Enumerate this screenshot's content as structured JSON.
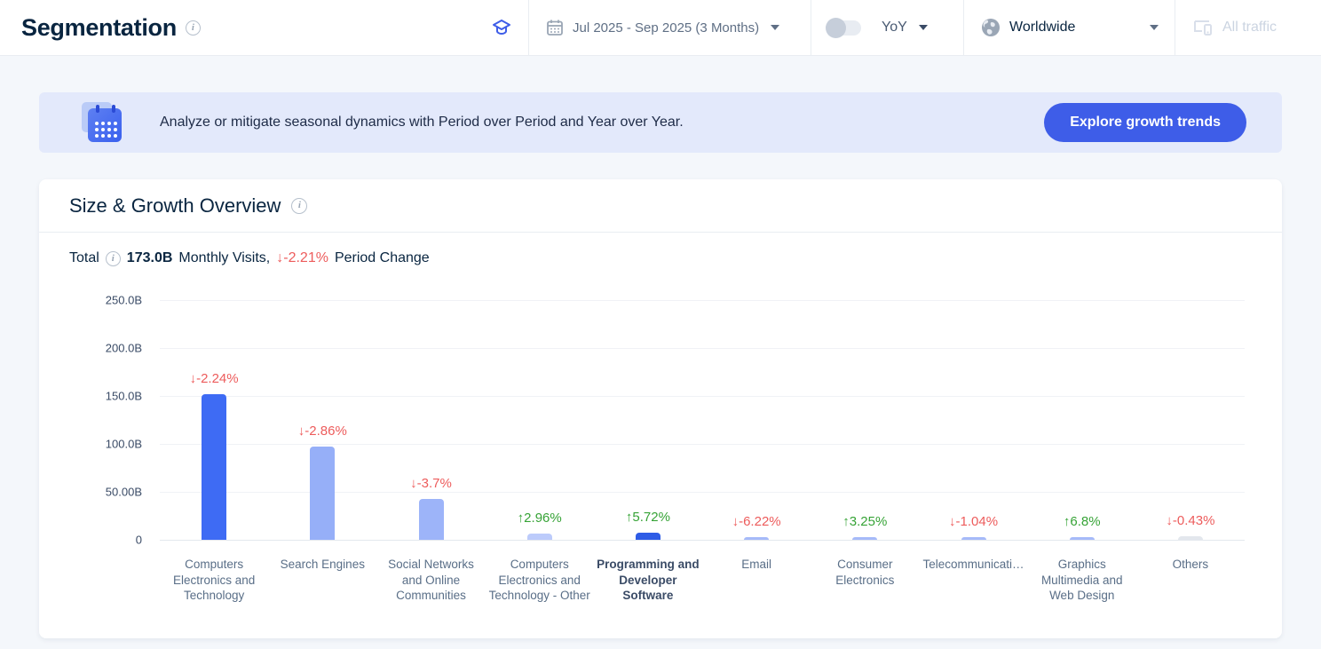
{
  "header": {
    "title": "Segmentation",
    "date_range": "Jul 2025 - Sep 2025 (3 Months)",
    "comparison_label": "YoY",
    "geo_label": "Worldwide",
    "traffic_label": "All traffic"
  },
  "banner": {
    "text": "Analyze or mitigate seasonal dynamics with Period over Period and Year over Year.",
    "button_label": "Explore growth trends"
  },
  "overview": {
    "title": "Size & Growth Overview",
    "total_label": "Total",
    "total_value": "173.0B",
    "total_suffix": "Monthly Visits,",
    "total_change": "↓-2.21%",
    "total_change_suffix": "Period Change"
  },
  "chart_data": {
    "type": "bar",
    "title": "Size & Growth Overview",
    "ylabel": "Monthly Visits",
    "unit": "B",
    "ylim": [
      0,
      250
    ],
    "grid": true,
    "y_ticks": [
      "250.0B",
      "200.0B",
      "150.0B",
      "100.0B",
      "50.00B",
      "0"
    ],
    "categories": [
      "Computers Electronics and Technology",
      "Search Engines",
      "Social Networks and Online Communities",
      "Computers Electronics and Technology - Other",
      "Programming and Developer Software",
      "Email",
      "Consumer Electronics",
      "Telecommunicati…",
      "Graphics Multimedia and Web Design",
      "Others"
    ],
    "values": [
      152,
      97,
      43,
      6.5,
      7.5,
      2.5,
      2.8,
      2.5,
      2.6,
      4
    ],
    "changes": [
      "↓-2.24%",
      "↓-2.86%",
      "↓-3.7%",
      "↑2.96%",
      "↑5.72%",
      "↓-6.22%",
      "↑3.25%",
      "↓-1.04%",
      "↑6.8%",
      "↓-0.43%"
    ],
    "directions": [
      "down",
      "down",
      "down",
      "up",
      "up",
      "down",
      "up",
      "down",
      "up",
      "down"
    ],
    "bar_colors": [
      "#3E6BF4",
      "#96AFF8",
      "#9DB4F9",
      "#BCCBFB",
      "#2E5CE6",
      "#A6BAF9",
      "#A6BAF9",
      "#A6BAF9",
      "#A6BAF9",
      "#E3E7ED"
    ],
    "highlighted_index": 4,
    "legend": "none"
  },
  "colors": {
    "accent_blue": "#3E5DE8",
    "banner_bg": "#E3E9FB",
    "positive": "#36A336",
    "negative": "#ED5C5C",
    "page_bg": "#F4F7FB"
  }
}
